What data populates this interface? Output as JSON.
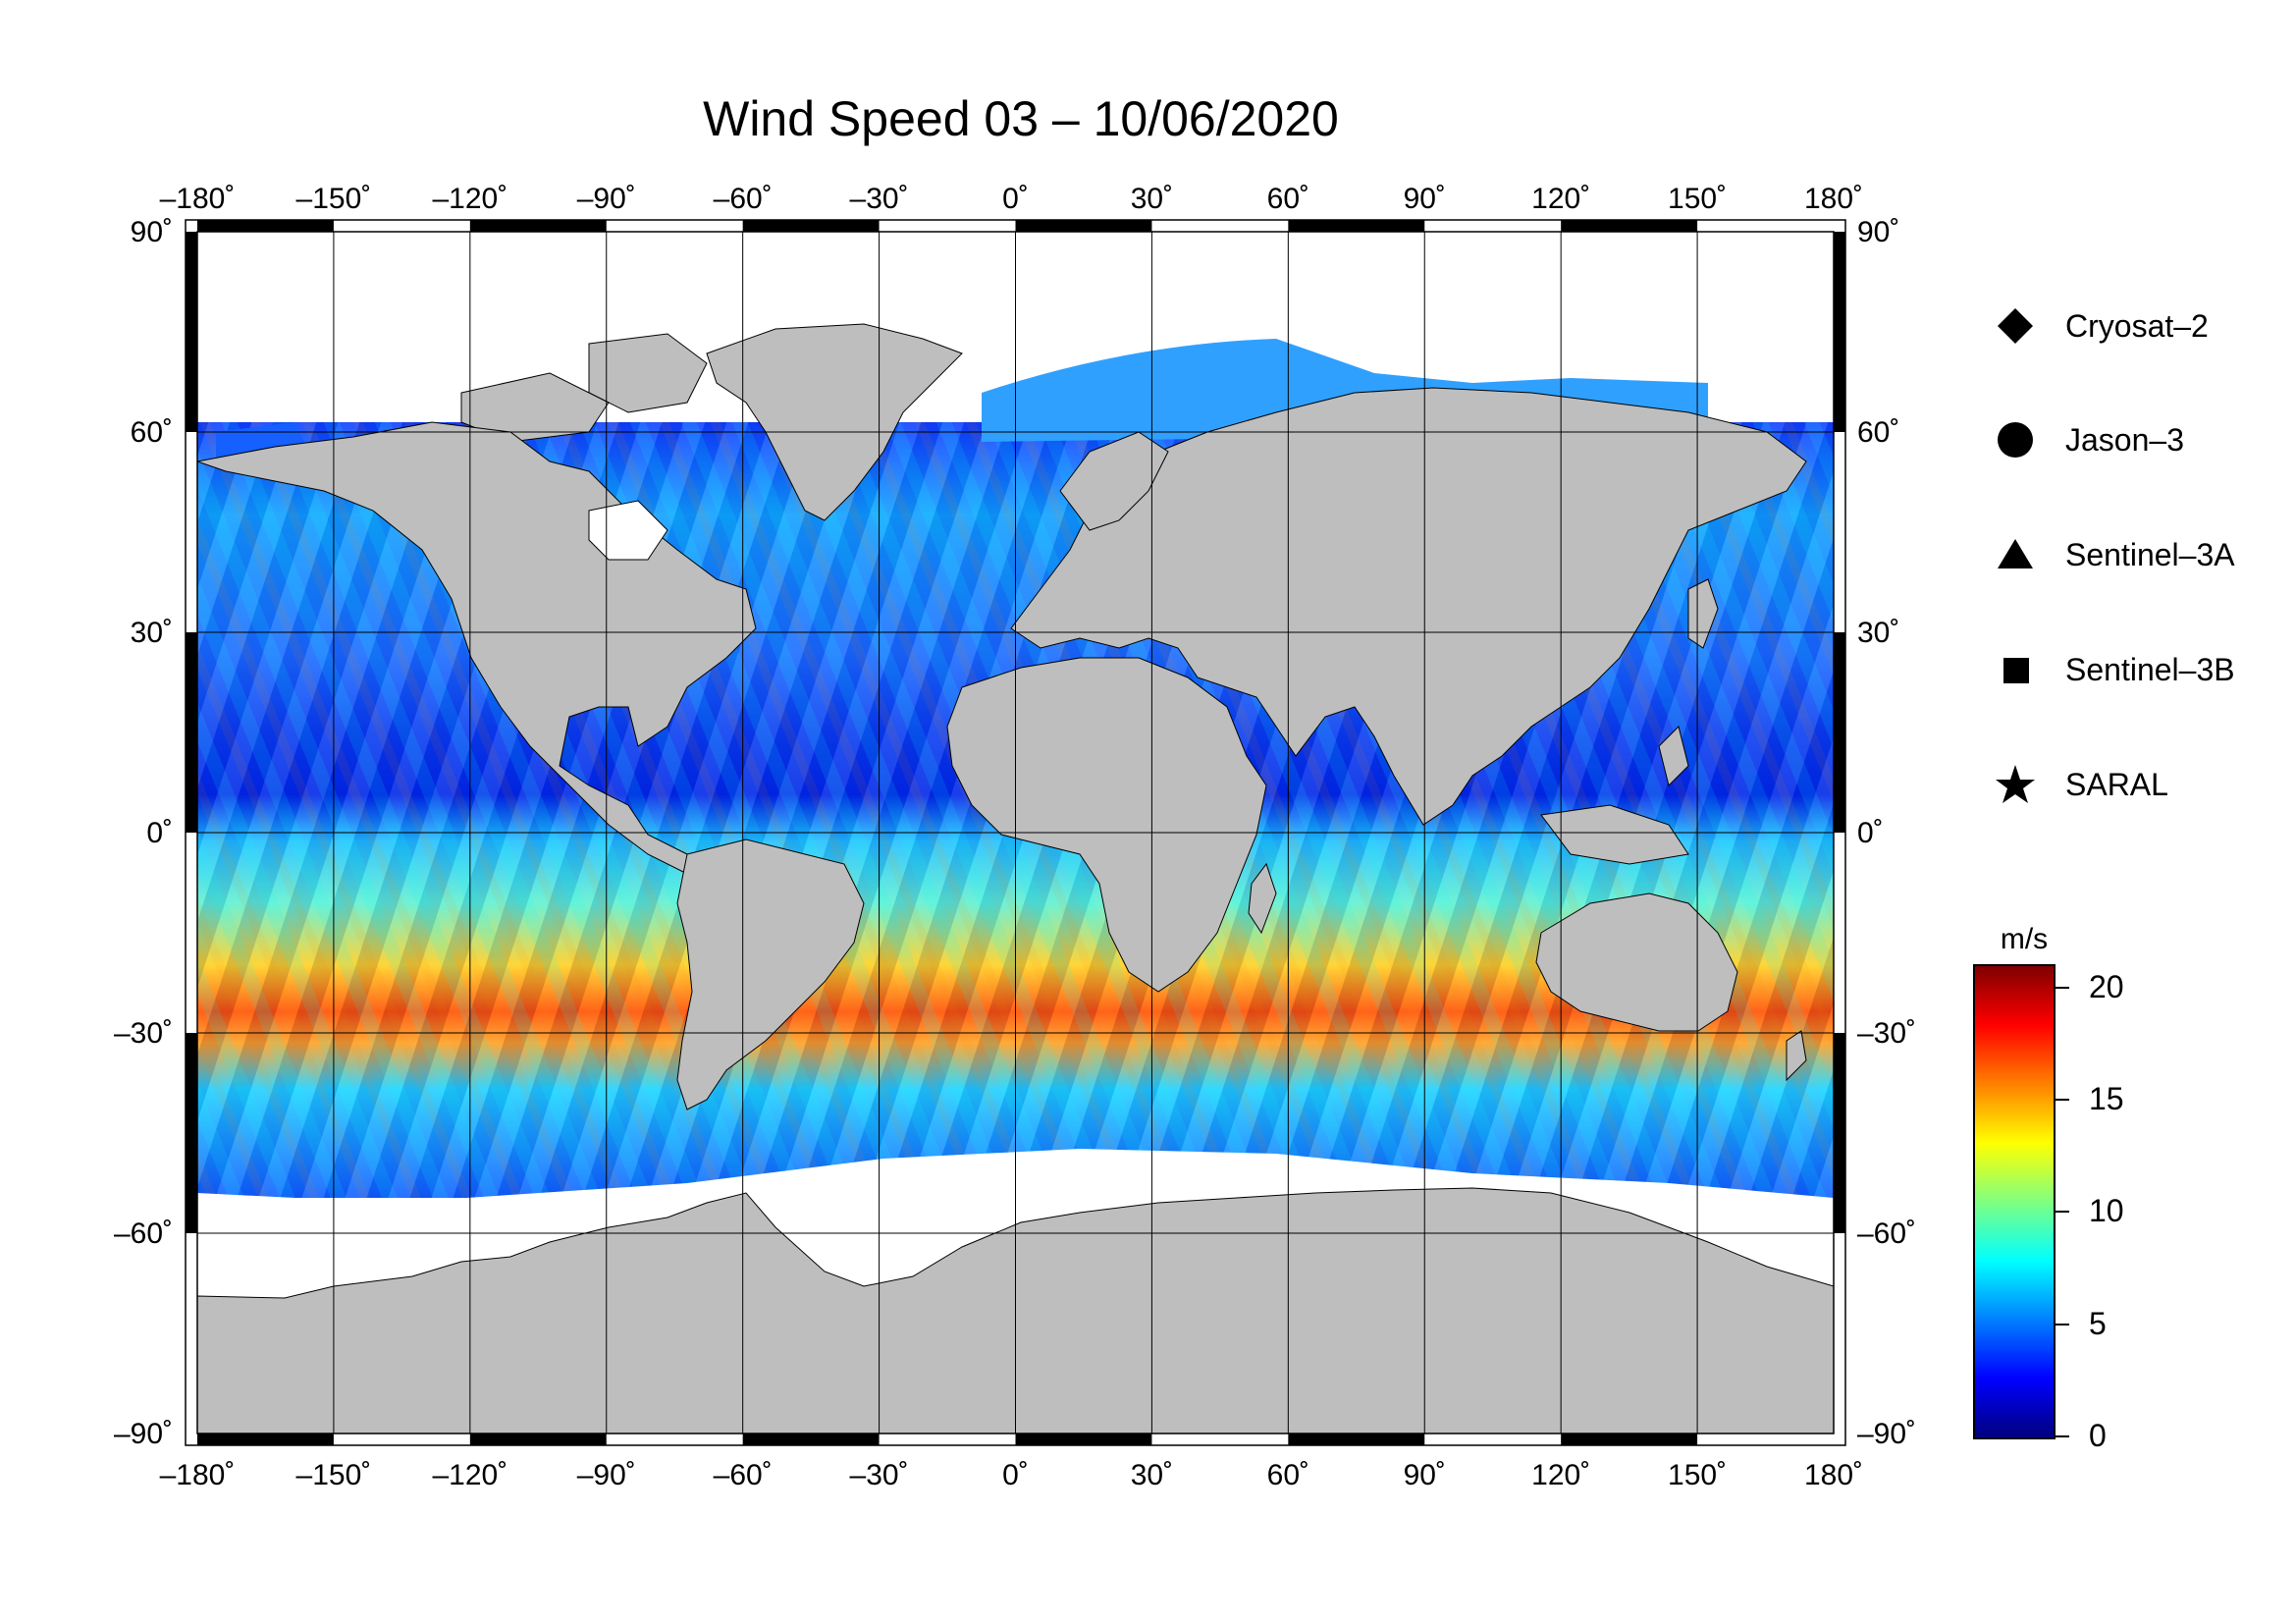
{
  "title": "Wind Speed 03 – 10/06/2020",
  "axes": {
    "lon_ticks": [
      "–180˚",
      "–150˚",
      "–120˚",
      "–90˚",
      "–60˚",
      "–30˚",
      "0˚",
      "30˚",
      "60˚",
      "90˚",
      "120˚",
      "150˚",
      "180˚"
    ],
    "lat_ticks_left": [
      "90˚",
      "60˚",
      "30˚",
      "0˚",
      "–30˚",
      "–60˚",
      "–90˚"
    ],
    "lat_ticks_right": [
      "90˚",
      "60˚",
      "30˚",
      "0˚",
      "–30˚",
      "–60˚",
      "–90˚"
    ],
    "lon_values": [
      -180,
      -150,
      -120,
      -90,
      -60,
      -30,
      0,
      30,
      60,
      90,
      120,
      150,
      180
    ],
    "lat_values": [
      90,
      60,
      30,
      0,
      -30,
      -60,
      -90
    ]
  },
  "legend": [
    {
      "symbol": "diamond-icon",
      "label": "Cryosat–2"
    },
    {
      "symbol": "circle-icon",
      "label": "Jason–3"
    },
    {
      "symbol": "triangle-icon",
      "label": "Sentinel–3A"
    },
    {
      "symbol": "square-icon",
      "label": "Sentinel–3B"
    },
    {
      "symbol": "star-icon",
      "label": "SARAL"
    }
  ],
  "colorbar": {
    "unit": "m/s",
    "ticks": [
      "20",
      "15",
      "10",
      "5",
      "0"
    ],
    "tick_values": [
      20,
      15,
      10,
      5,
      0
    ],
    "range": [
      0,
      21
    ],
    "colors": [
      "#00007f",
      "#0000ff",
      "#0080ff",
      "#00ffff",
      "#80ff80",
      "#ffff00",
      "#ff8000",
      "#ff0000",
      "#800000"
    ]
  },
  "colors": {
    "land": "#bebebe",
    "ice": "#ffffff",
    "ocean_low": "#0030e0",
    "ocean_mid": "#00c8ff",
    "ocean_high": "#ff3000"
  }
}
